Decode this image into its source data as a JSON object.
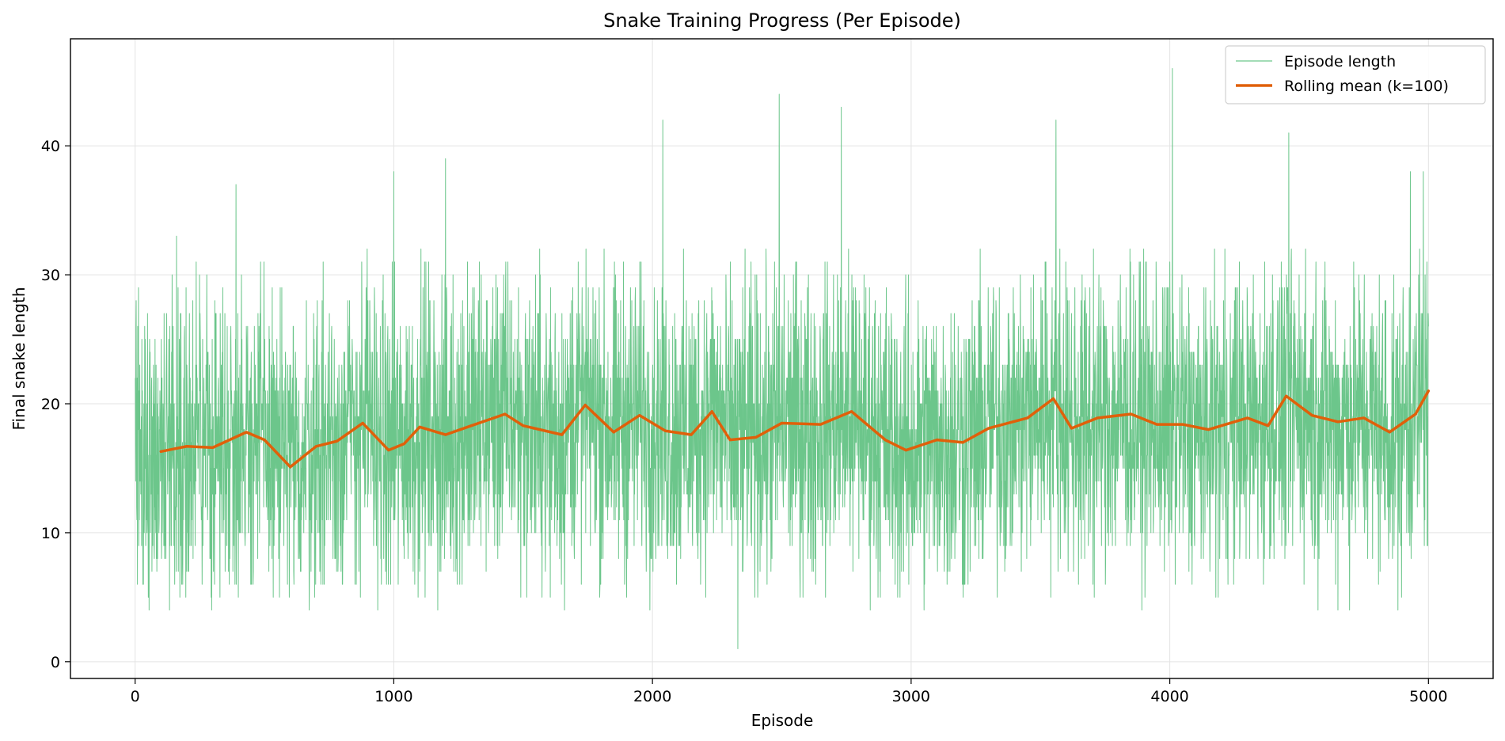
{
  "chart_data": {
    "type": "line",
    "title": "Snake Training Progress (Per Episode)",
    "xlabel": "Episode",
    "ylabel": "Final snake length",
    "xlim": [
      -250,
      5250
    ],
    "ylim": [
      -1.3,
      48.3
    ],
    "xticks": [
      0,
      1000,
      2000,
      3000,
      4000,
      5000
    ],
    "yticks": [
      0,
      10,
      20,
      30,
      40
    ],
    "grid": true,
    "legend_position": "top-right",
    "series": [
      {
        "name": "Episode length",
        "color": "#6cc68b",
        "style": "thin-line",
        "x_start": 1,
        "x_end": 5000,
        "noise_range": [
          4,
          32
        ],
        "spikes": [
          [
            160,
            33
          ],
          [
            390,
            37
          ],
          [
            1000,
            38
          ],
          [
            1200,
            39
          ],
          [
            2040,
            42
          ],
          [
            2490,
            44
          ],
          [
            2730,
            43
          ],
          [
            3560,
            42
          ],
          [
            4010,
            46
          ],
          [
            4460,
            41
          ],
          [
            4930,
            38
          ],
          [
            4980,
            38
          ],
          [
            2330,
            1
          ]
        ]
      },
      {
        "name": "Rolling mean (k=100)",
        "color": "#e0600a",
        "style": "thick-line",
        "window": 100,
        "x": [
          100,
          200,
          300,
          430,
          500,
          600,
          700,
          780,
          880,
          980,
          1040,
          1100,
          1200,
          1300,
          1430,
          1500,
          1650,
          1740,
          1850,
          1950,
          2050,
          2150,
          2230,
          2300,
          2400,
          2500,
          2650,
          2770,
          2900,
          2980,
          3100,
          3200,
          3300,
          3450,
          3550,
          3620,
          3720,
          3850,
          3950,
          4050,
          4150,
          4300,
          4380,
          4450,
          4550,
          4650,
          4750,
          4850,
          4950,
          5000
        ],
        "values": [
          16.3,
          16.7,
          16.6,
          17.8,
          17.2,
          15.1,
          16.7,
          17.1,
          18.5,
          16.4,
          16.9,
          18.2,
          17.6,
          18.3,
          19.2,
          18.3,
          17.6,
          19.9,
          17.8,
          19.1,
          17.9,
          17.6,
          19.4,
          17.2,
          17.4,
          18.5,
          18.4,
          19.4,
          17.2,
          16.4,
          17.2,
          17.0,
          18.1,
          18.9,
          20.4,
          18.1,
          18.9,
          19.2,
          18.4,
          18.4,
          18.0,
          18.9,
          18.3,
          20.6,
          19.1,
          18.6,
          18.9,
          17.8,
          19.2,
          21.0
        ]
      }
    ]
  }
}
